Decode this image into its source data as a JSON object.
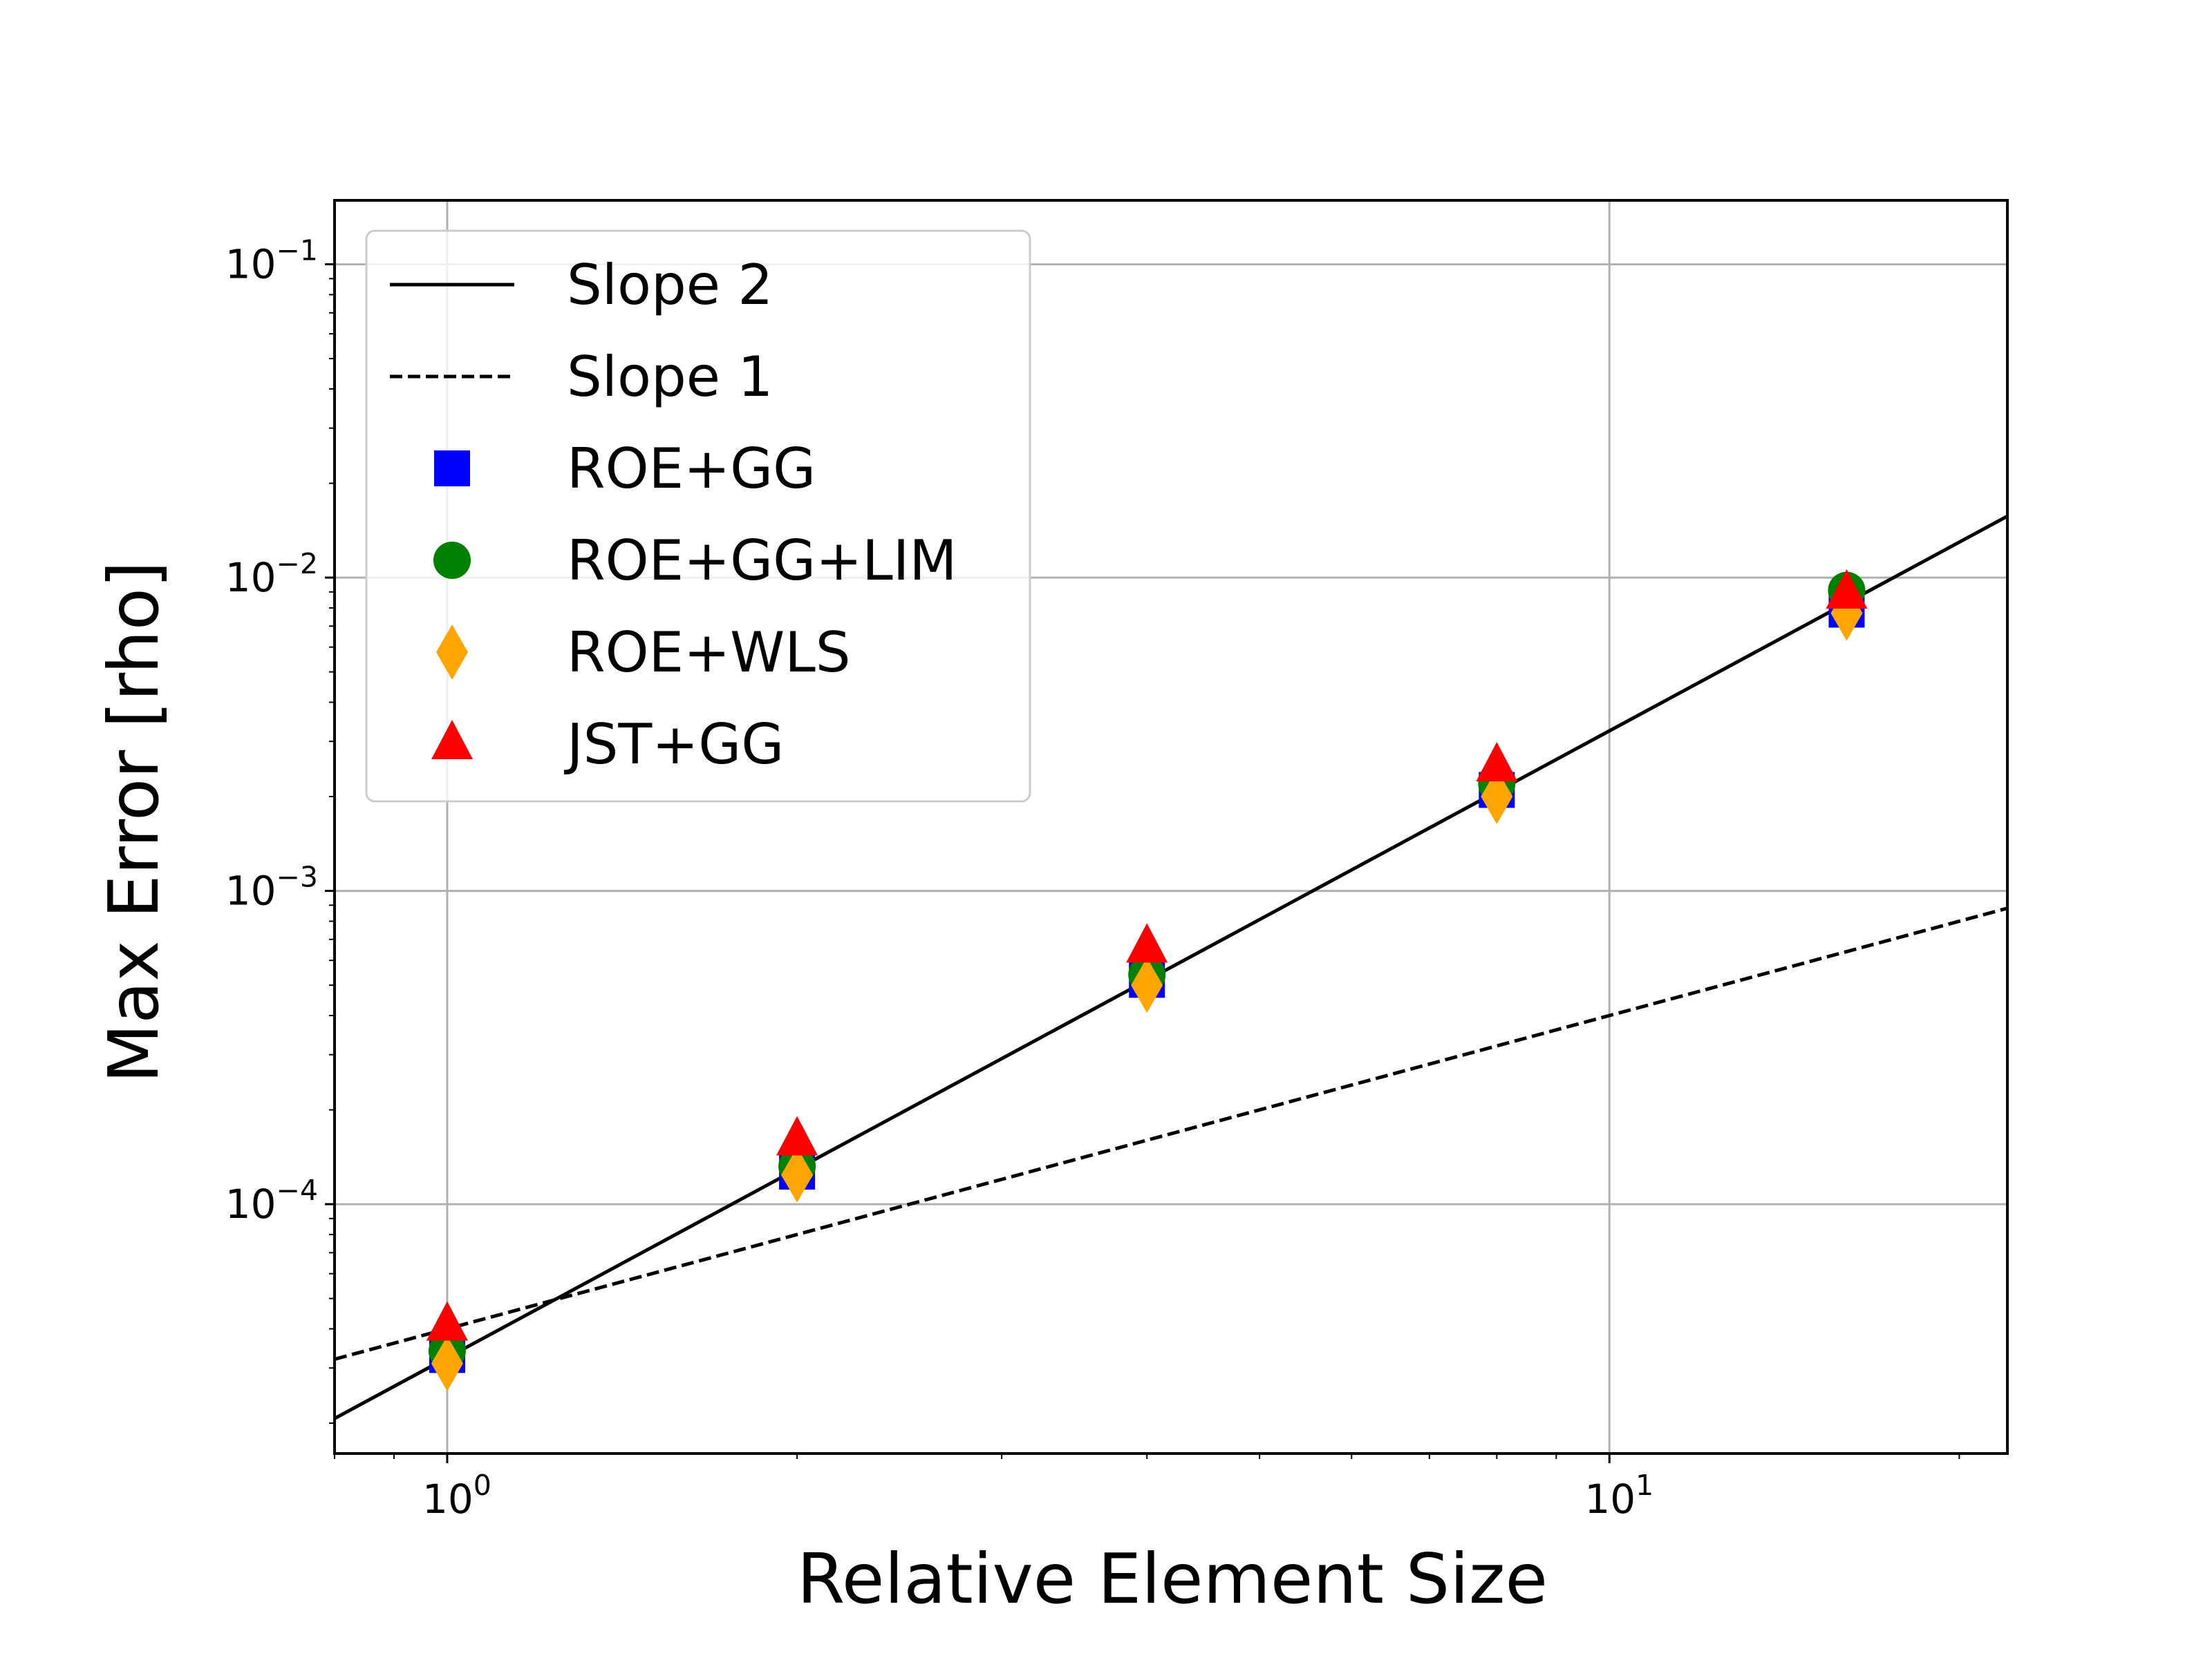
{
  "chart_data": {
    "type": "scatter",
    "title": "",
    "xlabel": "Relative Element Size",
    "ylabel": "Max Error [rho]",
    "xscale": "log",
    "yscale": "log",
    "xlim": [
      0.8,
      22
    ],
    "ylim": [
      1.6e-05,
      0.16
    ],
    "grid": true,
    "legend_placement": "top-left",
    "x_ticks": [
      {
        "value": 1,
        "base": "10",
        "exp": "0"
      },
      {
        "value": 10,
        "base": "10",
        "exp": "1"
      }
    ],
    "y_ticks": [
      {
        "value": 0.0001,
        "base": "10",
        "exp": "−4"
      },
      {
        "value": 0.001,
        "base": "10",
        "exp": "−3"
      },
      {
        "value": 0.01,
        "base": "10",
        "exp": "−2"
      },
      {
        "value": 0.1,
        "base": "10",
        "exp": "−1"
      }
    ],
    "series": [
      {
        "name": "Slope 2",
        "kind": "line",
        "style": "solid",
        "color": "#000000",
        "x": [
          0.8,
          22
        ],
        "y": [
          2.07e-05,
          0.0157
        ]
      },
      {
        "name": "Slope 1",
        "kind": "line",
        "style": "dashed",
        "color": "#000000",
        "x": [
          0.8,
          22
        ],
        "y": [
          3.2e-05,
          0.00088
        ]
      },
      {
        "name": "ROE+GG",
        "kind": "marker",
        "marker": "square",
        "color": "#0000ff",
        "x": [
          1,
          2,
          4,
          8,
          16
        ],
        "y": [
          3.3e-05,
          0.000127,
          0.00052,
          0.0021,
          0.0079
        ]
      },
      {
        "name": "ROE+GG+LIM",
        "kind": "marker",
        "marker": "circle",
        "color": "#008000",
        "x": [
          1,
          2,
          4,
          8,
          16
        ],
        "y": [
          3.4e-05,
          0.000132,
          0.00054,
          0.0022,
          0.0091
        ]
      },
      {
        "name": "ROE+WLS",
        "kind": "marker",
        "marker": "diamond",
        "color": "#ffa500",
        "x": [
          1,
          2,
          4,
          8,
          16
        ],
        "y": [
          3.1e-05,
          0.000124,
          0.0005,
          0.002,
          0.0077
        ]
      },
      {
        "name": "JST+GG",
        "kind": "marker",
        "marker": "triangle",
        "color": "#ff0000",
        "x": [
          1,
          2,
          4,
          8,
          16
        ],
        "y": [
          4.1e-05,
          0.00016,
          0.00066,
          0.0025,
          0.0089
        ]
      }
    ]
  }
}
